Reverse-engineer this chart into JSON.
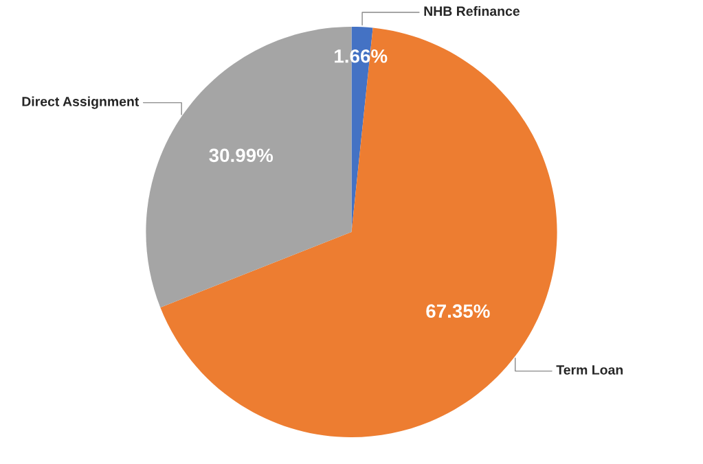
{
  "chart_data": {
    "type": "pie",
    "categories": [
      "NHB Refinance",
      "Term Loan",
      "Direct Assignment"
    ],
    "values": [
      1.66,
      67.35,
      30.99
    ],
    "colors": [
      "#4472c4",
      "#ed7d31",
      "#a5a5a5"
    ],
    "value_labels": [
      "1.66%",
      "67.35%",
      "30.99%"
    ],
    "legend": false
  }
}
